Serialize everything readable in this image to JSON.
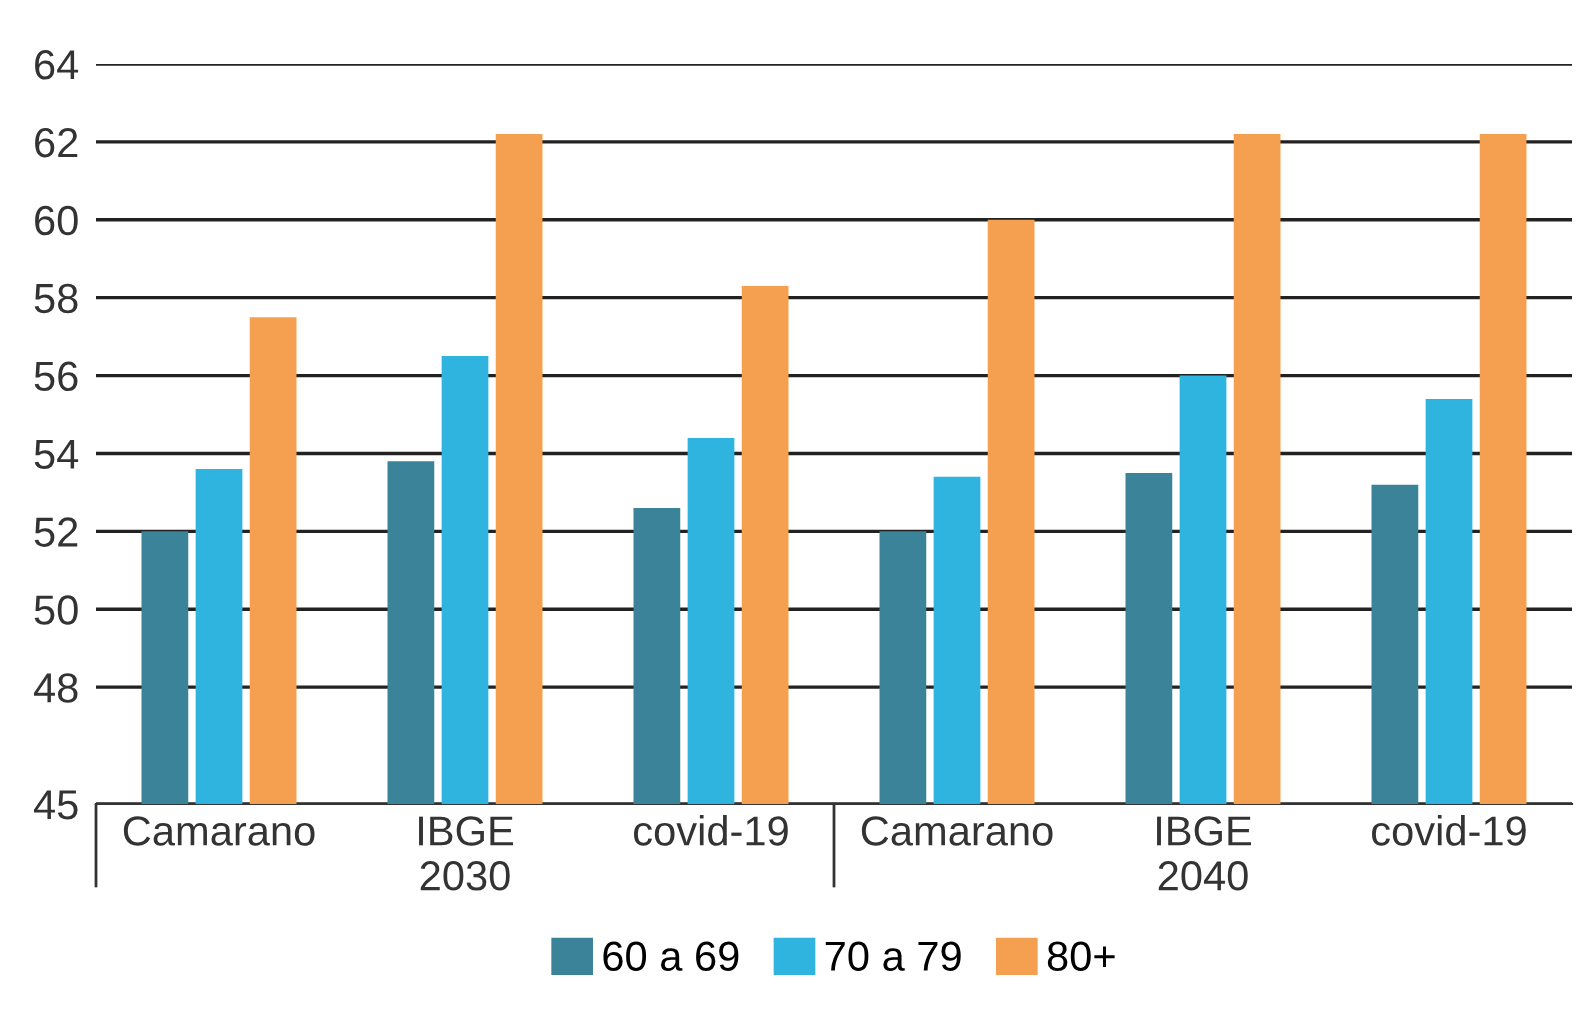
{
  "chart_data": {
    "type": "bar",
    "categories": [
      "Camarano",
      "IBGE\n2030",
      "covid-19",
      "Camarano",
      "IBGE\n2040",
      "covid-19"
    ],
    "series": [
      {
        "name": "60 a 69",
        "color": "#3a8399",
        "values": [
          52.0,
          53.8,
          52.6,
          52.0,
          53.5,
          53.2
        ]
      },
      {
        "name": "70 a 79",
        "color": "#2fb4e0",
        "values": [
          53.6,
          56.5,
          54.4,
          53.4,
          56.0,
          55.4
        ]
      },
      {
        "name": "80+",
        "color": "#f5a050",
        "values": [
          57.5,
          62.2,
          58.3,
          60.0,
          62.2,
          62.2
        ]
      }
    ],
    "ylim": [
      45,
      64
    ],
    "yticks": [
      45,
      48,
      50,
      52,
      54,
      56,
      58,
      60,
      62,
      64
    ],
    "grid": "y",
    "legend": "bottom"
  }
}
